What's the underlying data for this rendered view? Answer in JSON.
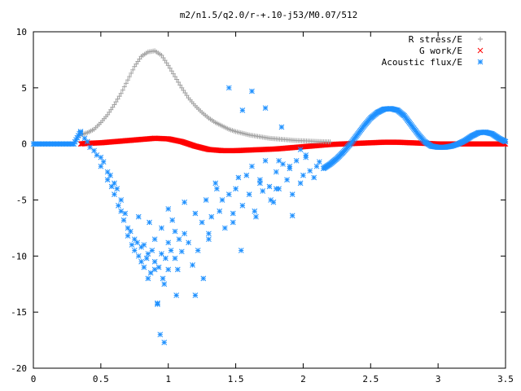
{
  "chart_data": {
    "type": "scatter",
    "title": "m2/n1.5/q2.0/r-+.10-j53/M0.07/512",
    "xlabel": "",
    "ylabel": "",
    "xlim": [
      0,
      3.5
    ],
    "ylim": [
      -20,
      10
    ],
    "x_ticks": [
      "0",
      "0.5",
      "1",
      "1.5",
      "2",
      "2.5",
      "3",
      "3.5"
    ],
    "y_ticks": [
      "-20",
      "-15",
      "-10",
      "-5",
      "0",
      "5",
      "10"
    ],
    "grid": false,
    "legend_position": "top-right",
    "series": [
      {
        "name": "R stress/E",
        "color": "#a0a0a0",
        "marker": "plus",
        "x": [
          0.35,
          0.4,
          0.45,
          0.5,
          0.55,
          0.6,
          0.65,
          0.7,
          0.75,
          0.8,
          0.85,
          0.9,
          0.95,
          1.0,
          1.05,
          1.1,
          1.15,
          1.2,
          1.25,
          1.3,
          1.35,
          1.4,
          1.45,
          1.5,
          1.55,
          1.6,
          1.65,
          1.7,
          1.75,
          1.8,
          1.85,
          1.9,
          1.95,
          2.0,
          2.05,
          2.1,
          2.15,
          2.2
        ],
        "y": [
          0.8,
          1.0,
          1.3,
          1.9,
          2.6,
          3.5,
          4.5,
          5.7,
          6.9,
          7.8,
          8.2,
          8.3,
          7.9,
          7.0,
          6.0,
          5.0,
          4.1,
          3.4,
          2.8,
          2.3,
          1.9,
          1.6,
          1.3,
          1.1,
          0.95,
          0.8,
          0.7,
          0.6,
          0.5,
          0.45,
          0.4,
          0.35,
          0.3,
          0.28,
          0.25,
          0.22,
          0.2,
          0.18
        ]
      },
      {
        "name": "G work/E",
        "color": "#ff0000",
        "marker": "cross",
        "x": [
          0.35,
          0.4,
          0.5,
          0.6,
          0.7,
          0.8,
          0.9,
          1.0,
          1.1,
          1.2,
          1.3,
          1.4,
          1.5,
          1.6,
          1.7,
          1.8,
          1.9,
          2.0,
          2.1,
          2.2,
          2.3,
          2.4,
          2.5,
          2.6,
          2.7,
          2.8,
          2.9,
          3.0,
          3.1,
          3.2,
          3.3,
          3.4,
          3.5
        ],
        "y": [
          0.0,
          0.05,
          0.1,
          0.2,
          0.3,
          0.4,
          0.5,
          0.45,
          0.2,
          -0.2,
          -0.5,
          -0.6,
          -0.6,
          -0.55,
          -0.5,
          -0.45,
          -0.35,
          -0.25,
          -0.15,
          -0.05,
          0.0,
          0.05,
          0.1,
          0.15,
          0.15,
          0.1,
          0.05,
          0.0,
          0.0,
          0.0,
          0.0,
          0.0,
          0.0
        ]
      },
      {
        "name": "Acoustic flux/E",
        "color": "#1e90ff",
        "marker": "star",
        "curve_x": [
          0.0,
          0.05,
          0.1,
          0.15,
          0.2,
          0.25,
          0.3,
          0.35,
          2.15,
          2.2,
          2.25,
          2.3,
          2.35,
          2.4,
          2.45,
          2.5,
          2.55,
          2.6,
          2.65,
          2.7,
          2.75,
          2.8,
          2.85,
          2.9,
          2.95,
          3.0,
          3.05,
          3.1,
          3.15,
          3.2,
          3.25,
          3.3,
          3.35,
          3.4,
          3.45,
          3.5
        ],
        "curve_y": [
          0.0,
          0.0,
          0.0,
          0.0,
          0.0,
          0.0,
          0.0,
          1.1,
          -2.2,
          -1.8,
          -1.3,
          -0.7,
          0.0,
          0.8,
          1.6,
          2.3,
          2.8,
          3.1,
          3.15,
          3.0,
          2.5,
          1.7,
          0.9,
          0.2,
          -0.2,
          -0.3,
          -0.3,
          -0.2,
          0.0,
          0.3,
          0.7,
          1.0,
          1.05,
          0.9,
          0.5,
          0.2
        ],
        "x": [
          0.35,
          0.38,
          0.4,
          0.42,
          0.45,
          0.47,
          0.5,
          0.5,
          0.52,
          0.55,
          0.55,
          0.57,
          0.58,
          0.6,
          0.6,
          0.62,
          0.63,
          0.65,
          0.65,
          0.67,
          0.68,
          0.7,
          0.7,
          0.72,
          0.73,
          0.75,
          0.75,
          0.77,
          0.78,
          0.8,
          0.8,
          0.82,
          0.82,
          0.84,
          0.85,
          0.85,
          0.87,
          0.88,
          0.9,
          0.9,
          0.92,
          0.93,
          0.95,
          0.95,
          0.97,
          0.98,
          1.0,
          1.0,
          1.02,
          1.03,
          1.05,
          1.05,
          1.07,
          1.08,
          1.1,
          1.12,
          1.15,
          1.18,
          1.2,
          1.22,
          1.25,
          1.28,
          1.3,
          1.32,
          1.35,
          1.38,
          1.4,
          1.42,
          1.45,
          1.48,
          1.5,
          1.52,
          1.55,
          1.58,
          1.6,
          1.62,
          1.65,
          1.68,
          1.7,
          1.72,
          1.75,
          1.78,
          1.8,
          1.82,
          1.85,
          1.88,
          1.9,
          1.92,
          1.95,
          1.98,
          2.0,
          2.02,
          2.05,
          2.08,
          2.1,
          2.12,
          0.94,
          0.97,
          1.0,
          1.06,
          1.2,
          1.3,
          1.48,
          1.64,
          1.76,
          1.8,
          1.92,
          1.9,
          2.02,
          1.45,
          1.55,
          1.62,
          1.72,
          1.84,
          0.78,
          0.86,
          0.9,
          0.92,
          0.96,
          1.12,
          1.26,
          1.36,
          1.54,
          1.68,
          1.82,
          1.98
        ],
        "y": [
          1.0,
          0.5,
          0.2,
          -0.3,
          -0.6,
          -1.0,
          -1.2,
          -2.0,
          -1.6,
          -2.5,
          -3.2,
          -2.8,
          -3.8,
          -3.5,
          -4.5,
          -4.0,
          -5.5,
          -5.0,
          -6.0,
          -6.8,
          -6.2,
          -7.5,
          -8.2,
          -7.8,
          -9.0,
          -8.5,
          -9.5,
          -8.8,
          -10.0,
          -9.2,
          -10.5,
          -9.0,
          -11.0,
          -10.2,
          -9.8,
          -12.0,
          -11.5,
          -9.5,
          -10.5,
          -8.5,
          -14.2,
          -11.0,
          -9.8,
          -7.5,
          -12.5,
          -10.2,
          -11.2,
          -8.8,
          -9.5,
          -6.8,
          -10.2,
          -7.8,
          -11.2,
          -8.5,
          -9.6,
          -8.0,
          -8.8,
          -10.8,
          -6.2,
          -9.5,
          -7.0,
          -5.0,
          -8.0,
          -6.5,
          -3.5,
          -6.0,
          -5.0,
          -7.5,
          -4.5,
          -6.2,
          -4.0,
          -3.0,
          -5.5,
          -2.8,
          -4.5,
          -2.0,
          -6.5,
          -3.2,
          -4.2,
          -1.5,
          -3.8,
          -5.2,
          -2.5,
          -4.0,
          -1.8,
          -3.2,
          -2.2,
          -4.5,
          -1.5,
          -3.5,
          -2.8,
          -1.2,
          -2.4,
          -3.0,
          -2.0,
          -1.6,
          -17.0,
          -17.7,
          -5.8,
          -13.5,
          -13.5,
          -8.5,
          -7.0,
          -6.0,
          -5.0,
          -4.0,
          -6.4,
          -2.0,
          -1.0,
          5.0,
          3.0,
          4.7,
          3.2,
          1.5,
          -6.5,
          -7.0,
          -11.2,
          -14.3,
          -12.0,
          -5.2,
          -12.0,
          -4.0,
          -9.5,
          -3.5,
          -1.5,
          -0.5
        ]
      }
    ]
  }
}
